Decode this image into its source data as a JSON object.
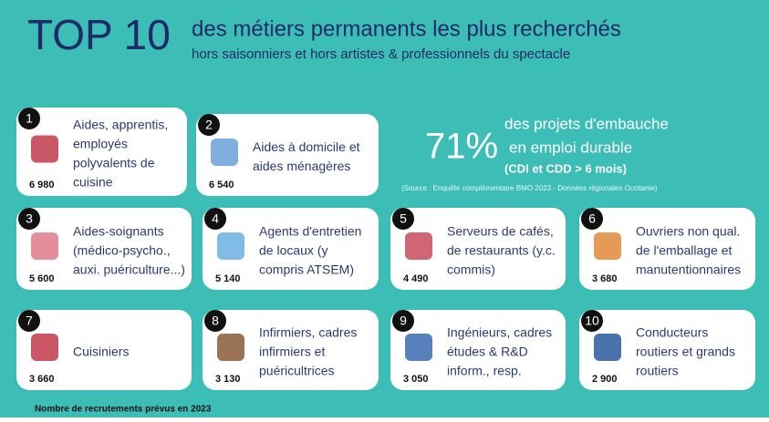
{
  "header": {
    "title": "TOP 10",
    "subtitle": "des métiers permanents les plus recherchés",
    "subtitle2": "hors saisonniers et hors artistes & professionnels du spectacle"
  },
  "stat": {
    "value": "71%",
    "line1": "des projets d'embauche",
    "line2": "en emploi durable",
    "line3": "(CDI et CDD > 6 mois)",
    "source": "(Source : Enquête complémentaire BMO 2023 - Données régionales Occitanie)"
  },
  "cards": [
    {
      "rank": "1",
      "lines": [
        "Aides, apprentis,",
        "employés",
        "polyvalents de",
        "cuisine"
      ],
      "count": "6 980"
    },
    {
      "rank": "2",
      "lines": [
        "Aides à domicile et",
        "aides ménagères"
      ],
      "count": "6 540"
    },
    {
      "rank": "3",
      "lines": [
        "Aides-soignants",
        "(médico-psycho.,",
        "auxi. puériculture...)"
      ],
      "count": "5 600"
    },
    {
      "rank": "4",
      "lines": [
        "Agents d'entretien",
        "de locaux (y",
        "compris ATSEM)"
      ],
      "count": "5 140"
    },
    {
      "rank": "5",
      "lines": [
        "Serveurs de cafés,",
        "de restaurants (y.c.",
        "commis)"
      ],
      "count": "4 490"
    },
    {
      "rank": "6",
      "lines": [
        "Ouvriers non qual.",
        "de l'emballage et",
        "manutentionnaires"
      ],
      "count": "3 680"
    },
    {
      "rank": "7",
      "lines": [
        "Cuisiniers"
      ],
      "count": "3 660"
    },
    {
      "rank": "8",
      "lines": [
        "Infirmiers, cadres",
        "infirmiers et",
        "puéricultrices"
      ],
      "count": "3 130"
    },
    {
      "rank": "9",
      "lines": [
        "Ingénieurs, cadres",
        "études & R&D",
        "inform., resp."
      ],
      "count": "3 050"
    },
    {
      "rank": "10",
      "lines": [
        "Conducteurs",
        "routiers et grands",
        "routiers"
      ],
      "count": "2 900"
    }
  ],
  "footer": "Nombre de recrutements prévus en 2023"
}
